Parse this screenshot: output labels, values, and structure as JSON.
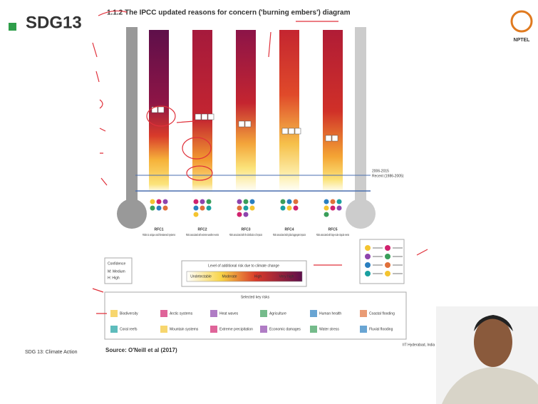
{
  "header": {
    "badge": "SDG13",
    "title": "1.1.2 The IPCC updated reasons for concern ('burning embers') diagram",
    "logo": "NPTEL"
  },
  "diagram": {
    "rfcs": [
      {
        "label": "RFC1",
        "description": "Risks to unique and threatened systems"
      },
      {
        "label": "RFC2",
        "description": "Risks associated with extreme weather events"
      },
      {
        "label": "RFC3",
        "description": "Risks associated with the distribution of impacts"
      },
      {
        "label": "RFC4",
        "description": "Risks associated with global aggregate impacts"
      },
      {
        "label": "RFC5",
        "description": "Risks associated with large-scale singular events"
      }
    ],
    "reference_lines": [
      "2006-2015",
      "Recent (1986-2005)"
    ],
    "confidence": {
      "title": "Confidence",
      "items": [
        "M: Medium",
        "H: High"
      ]
    },
    "risk_scale": {
      "title": "Level of additional risk due to climate change",
      "levels": [
        "Undetectable",
        "Moderate",
        "High",
        "Very high"
      ]
    },
    "key_risks": {
      "title": "Selected key risks",
      "items": [
        "Biodiversity",
        "Arctic systems",
        "Heat waves",
        "Agriculture",
        "Human health",
        "Coastal flooding",
        "Coral reefs",
        "Mountain systems",
        "Extreme precipitation",
        "Economic damages",
        "Water stress",
        "Fluvial flooding"
      ]
    }
  },
  "footer": {
    "course": "SDG 13: Climate Action",
    "source": "Source: O'Neill et al (2017)",
    "presenter": "IIT Hyderabad, India"
  }
}
